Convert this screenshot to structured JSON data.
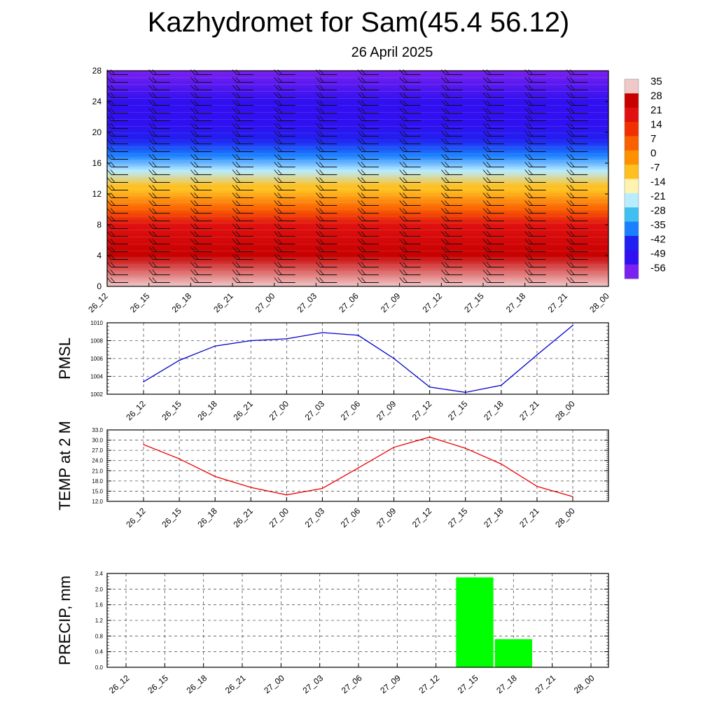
{
  "header": {
    "title": "Kazhydromet for Sam(45.4 56.12)",
    "date": "26 April 2025"
  },
  "chart_data": [
    {
      "type": "heatmap",
      "x_categories": [
        "26_12",
        "26_15",
        "26_18",
        "26_21",
        "27_00",
        "27_03",
        "27_06",
        "27_09",
        "27_12",
        "27_15",
        "27_18",
        "27_21",
        "28_00"
      ],
      "yticks": [
        0,
        4,
        8,
        12,
        16,
        20,
        24,
        28
      ],
      "ylim": [
        0,
        28
      ],
      "colorbar_labels": [
        "35",
        "28",
        "21",
        "14",
        "7",
        "0",
        "-7",
        "-14",
        "-21",
        "-28",
        "-35",
        "-42",
        "-49",
        "-56"
      ],
      "colorbar_colors": [
        "#f0c8c8",
        "#c80000",
        "#e01010",
        "#f03000",
        "#fa6000",
        "#ff9000",
        "#ffc020",
        "#fff3b0",
        "#b8ecff",
        "#40c0f0",
        "#1a80ff",
        "#2020f0",
        "#3010f0",
        "#7a20f0"
      ],
      "temperature_by_level": [
        {
          "level": 0,
          "temp": 30
        },
        {
          "level": 4,
          "temp": 22
        },
        {
          "level": 8,
          "temp": 14
        },
        {
          "level": 10,
          "temp": 5
        },
        {
          "level": 12.5,
          "temp": -10
        },
        {
          "level": 13,
          "temp": -16
        },
        {
          "level": 15,
          "temp": -28
        },
        {
          "level": 17,
          "temp": -40
        },
        {
          "level": 19,
          "temp": -52
        },
        {
          "level": 21,
          "temp": -56
        },
        {
          "level": 24,
          "temp": -58
        },
        {
          "level": 28,
          "temp": -60
        }
      ],
      "grid": false
    },
    {
      "type": "line",
      "ylabel": "PMSL",
      "categories": [
        "26_12",
        "26_15",
        "26_18",
        "26_21",
        "27_00",
        "27_03",
        "27_06",
        "27_09",
        "27_12",
        "27_15",
        "27_18",
        "27_21",
        "28_00"
      ],
      "values": [
        1003.4,
        1005.8,
        1007.4,
        1008.0,
        1008.2,
        1008.9,
        1008.6,
        1006.0,
        1002.8,
        1002.2,
        1003.0,
        1006.4,
        1009.7
      ],
      "ylim": [
        1002,
        1010
      ],
      "yticks": [
        "1010",
        "1008",
        "1006",
        "1004",
        "1002"
      ],
      "color": "#0000cc",
      "grid": true
    },
    {
      "type": "line",
      "ylabel": "TEMP at 2 M",
      "categories": [
        "26_12",
        "26_15",
        "26_18",
        "26_21",
        "27_00",
        "27_03",
        "27_06",
        "27_09",
        "27_12",
        "27_15",
        "27_18",
        "27_21",
        "28_00"
      ],
      "values": [
        28.7,
        24.5,
        19.3,
        16.1,
        13.9,
        15.8,
        21.8,
        27.9,
        30.9,
        27.6,
        23.0,
        16.4,
        13.4
      ],
      "ylim": [
        12,
        33
      ],
      "yticks": [
        "33.0",
        "30.0",
        "27.0",
        "24.0",
        "21.0",
        "18.0",
        "15.0",
        "12.0"
      ],
      "color": "#ee0000",
      "grid": true
    },
    {
      "type": "bar",
      "ylabel": "PRECIP, mm",
      "categories": [
        "26_12",
        "26_15",
        "26_18",
        "26_21",
        "27_00",
        "27_03",
        "27_06",
        "27_09",
        "27_12",
        "27_15",
        "27_18",
        "27_21",
        "28_00"
      ],
      "values": [
        0,
        0,
        0,
        0,
        0,
        0,
        0,
        0,
        0,
        2.3,
        0.72,
        0,
        0
      ],
      "ylim": [
        0,
        2.4
      ],
      "yticks": [
        "2.4",
        "2.0",
        "1.6",
        "1.2",
        "0.8",
        "0.4",
        "0.0"
      ],
      "color": "#00ff00",
      "grid": true
    }
  ]
}
